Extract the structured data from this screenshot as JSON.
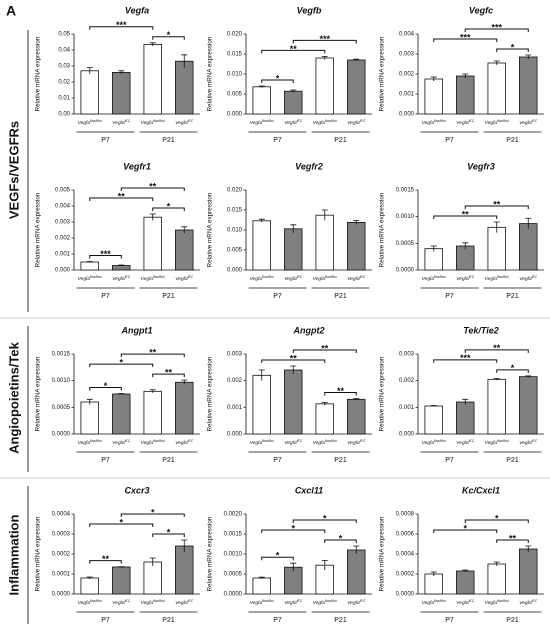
{
  "panel_label": "A",
  "row_labels": [
    "VEGFs/VEGFRs",
    "Angiopoietins/Tek",
    "Inflammation"
  ],
  "chart_data": [
    {
      "type": "bar",
      "title": "Vegfa",
      "y_label": "Relative mRNA expression",
      "categories": [
        {
          "text": "Vegfa",
          "sup": "flox/flox"
        },
        {
          "text": "Vegfa",
          "sup": "iEC"
        },
        {
          "text": "Vegfa",
          "sup": "flox/flox"
        },
        {
          "text": "Vegfa",
          "sup": "iEC"
        }
      ],
      "groups": [
        "P7",
        "P21"
      ],
      "colors": [
        "#ffffff",
        "#808080",
        "#ffffff",
        "#808080"
      ],
      "values": [
        0.027,
        0.026,
        0.0435,
        0.033
      ],
      "errors": [
        0.002,
        0.001,
        0.001,
        0.004
      ],
      "ylim": [
        0,
        0.05
      ],
      "yticks": [
        {
          "value": 0,
          "label": "0.00"
        },
        0.01,
        0.02,
        0.03,
        0.04,
        0.05
      ],
      "annotations": [
        {
          "between": [
            0,
            2
          ],
          "label": "***"
        },
        {
          "between": [
            2,
            3
          ],
          "label": "*"
        }
      ]
    },
    {
      "type": "bar",
      "title": "Vegfb",
      "y_label": "Relative mRNA expression",
      "categories": [
        {
          "text": "Vegfa",
          "sup": "flox/flox"
        },
        {
          "text": "Vegfa",
          "sup": "iEC"
        },
        {
          "text": "Vegfa",
          "sup": "flox/flox"
        },
        {
          "text": "Vegfa",
          "sup": "iEC"
        }
      ],
      "groups": [
        "P7",
        "P21"
      ],
      "colors": [
        "#ffffff",
        "#808080",
        "#ffffff",
        "#808080"
      ],
      "values": [
        0.0068,
        0.0057,
        0.014,
        0.0135
      ],
      "errors": [
        0.0002,
        0.0003,
        0.0004,
        0.0002
      ],
      "ylim": [
        0,
        0.02
      ],
      "yticks": [
        {
          "value": 0,
          "label": "0.000"
        },
        0.005,
        {
          "value": 0.01,
          "label": "0.010"
        },
        0.015,
        {
          "value": 0.02,
          "label": "0.020"
        }
      ],
      "annotations": [
        {
          "between": [
            0,
            1
          ],
          "label": "*"
        },
        {
          "between": [
            0,
            2
          ],
          "label": "**"
        },
        {
          "between": [
            1,
            3
          ],
          "label": "***"
        }
      ]
    },
    {
      "type": "bar",
      "title": "Vegfc",
      "y_label": "Relative mRNA expression",
      "categories": [
        {
          "text": "Vegfa",
          "sup": "flox/flox"
        },
        {
          "text": "Vegfa",
          "sup": "iEC"
        },
        {
          "text": "Vegfa",
          "sup": "flox/flox"
        },
        {
          "text": "Vegfa",
          "sup": "iEC"
        }
      ],
      "groups": [
        "P7",
        "P21"
      ],
      "colors": [
        "#ffffff",
        "#808080",
        "#ffffff",
        "#808080"
      ],
      "values": [
        0.00175,
        0.0019,
        0.00255,
        0.00285
      ],
      "errors": [
        0.0001,
        0.0001,
        0.0001,
        0.0001
      ],
      "ylim": [
        0,
        0.004
      ],
      "yticks": [
        {
          "value": 0,
          "label": "0.000"
        },
        0.001,
        0.002,
        0.003,
        0.004
      ],
      "annotations": [
        {
          "between": [
            0,
            2
          ],
          "label": "***"
        },
        {
          "between": [
            1,
            3
          ],
          "label": "***"
        },
        {
          "between": [
            2,
            3
          ],
          "label": "*"
        }
      ]
    },
    {
      "type": "bar",
      "title": "Vegfr1",
      "y_label": "Relative mRNA expression",
      "categories": [
        {
          "text": "Vegfa",
          "sup": "flox/flox"
        },
        {
          "text": "Vegfa",
          "sup": "iEC"
        },
        {
          "text": "Vegfa",
          "sup": "flox/flox"
        },
        {
          "text": "Vegfa",
          "sup": "iEC"
        }
      ],
      "groups": [
        "P7",
        "P21"
      ],
      "colors": [
        "#ffffff",
        "#808080",
        "#ffffff",
        "#808080"
      ],
      "values": [
        0.0005,
        0.00028,
        0.0033,
        0.0025
      ],
      "errors": [
        3e-05,
        3e-05,
        0.0002,
        0.0002
      ],
      "ylim": [
        0,
        0.005
      ],
      "yticks": [
        {
          "value": 0,
          "label": "0.000"
        },
        0.001,
        0.002,
        0.003,
        0.004,
        0.005
      ],
      "annotations": [
        {
          "between": [
            0,
            1
          ],
          "label": "***"
        },
        {
          "between": [
            0,
            2
          ],
          "label": "**"
        },
        {
          "between": [
            1,
            3
          ],
          "label": "**"
        },
        {
          "between": [
            2,
            3
          ],
          "label": "*"
        }
      ]
    },
    {
      "type": "bar",
      "title": "Vegfr2",
      "y_label": "Relative mRNA expression",
      "categories": [
        {
          "text": "Vegfa",
          "sup": "flox/flox"
        },
        {
          "text": "Vegfa",
          "sup": "iEC"
        },
        {
          "text": "Vegfa",
          "sup": "flox/flox"
        },
        {
          "text": "Vegfa",
          "sup": "iEC"
        }
      ],
      "groups": [
        "P7",
        "P21"
      ],
      "colors": [
        "#ffffff",
        "#808080",
        "#ffffff",
        "#808080"
      ],
      "values": [
        0.0123,
        0.0103,
        0.0137,
        0.0119
      ],
      "errors": [
        0.0004,
        0.001,
        0.0013,
        0.0005
      ],
      "ylim": [
        0,
        0.02
      ],
      "yticks": [
        {
          "value": 0,
          "label": "0.000"
        },
        0.005,
        {
          "value": 0.01,
          "label": "0.010"
        },
        0.015,
        {
          "value": 0.02,
          "label": "0.020"
        }
      ],
      "annotations": []
    },
    {
      "type": "bar",
      "title": "Vegfr3",
      "y_label": "Relative mRNA expression",
      "categories": [
        {
          "text": "Vegfa",
          "sup": "flox/flox"
        },
        {
          "text": "Vegfa",
          "sup": "iEC"
        },
        {
          "text": "Vegfa",
          "sup": "flox/flox"
        },
        {
          "text": "Vegfa",
          "sup": "iEC"
        }
      ],
      "groups": [
        "P7",
        "P21"
      ],
      "colors": [
        "#ffffff",
        "#808080",
        "#ffffff",
        "#808080"
      ],
      "values": [
        0.0004,
        0.00045,
        0.0008,
        0.00087
      ],
      "errors": [
        5e-05,
        6e-05,
        0.0001,
        0.0001
      ],
      "ylim": [
        0,
        0.0015
      ],
      "yticks": [
        {
          "value": 0,
          "label": "0.0000"
        },
        0.0005,
        {
          "value": 0.001,
          "label": "0.0010"
        },
        0.0015
      ],
      "annotations": [
        {
          "between": [
            0,
            2
          ],
          "label": "**"
        },
        {
          "between": [
            1,
            3
          ],
          "label": "**"
        }
      ]
    },
    {
      "type": "bar",
      "title": "Angpt1",
      "y_label": "Relative mRNA expression",
      "categories": [
        {
          "text": "Vegfa",
          "sup": "flox/flox"
        },
        {
          "text": "Vegfa",
          "sup": "iEC"
        },
        {
          "text": "Vegfa",
          "sup": "flox/flox"
        },
        {
          "text": "Vegfa",
          "sup": "iEC"
        }
      ],
      "groups": [
        "P7",
        "P21"
      ],
      "colors": [
        "#ffffff",
        "#808080",
        "#ffffff",
        "#808080"
      ],
      "values": [
        0.0006,
        0.00075,
        0.0008,
        0.00097
      ],
      "errors": [
        5e-05,
        1e-05,
        3e-05,
        4e-05
      ],
      "ylim": [
        0,
        0.0015
      ],
      "yticks": [
        {
          "value": 0,
          "label": "0.0000"
        },
        0.0005,
        {
          "value": 0.001,
          "label": "0.0010"
        },
        0.0015
      ],
      "annotations": [
        {
          "between": [
            0,
            1
          ],
          "label": "*"
        },
        {
          "between": [
            0,
            2
          ],
          "label": "*"
        },
        {
          "between": [
            1,
            3
          ],
          "label": "**"
        },
        {
          "between": [
            2,
            3
          ],
          "label": "**"
        }
      ]
    },
    {
      "type": "bar",
      "title": "Angpt2",
      "y_label": "Relative mRNA expression",
      "categories": [
        {
          "text": "Vegfa",
          "sup": "flox/flox"
        },
        {
          "text": "Vegfa",
          "sup": "iEC"
        },
        {
          "text": "Vegfa",
          "sup": "flox/flox"
        },
        {
          "text": "Vegfa",
          "sup": "iEC"
        }
      ],
      "groups": [
        "P7",
        "P21"
      ],
      "colors": [
        "#ffffff",
        "#808080",
        "#ffffff",
        "#808080"
      ],
      "values": [
        0.0022,
        0.0024,
        0.00113,
        0.0013
      ],
      "errors": [
        0.0002,
        0.00015,
        5e-05,
        3e-05
      ],
      "ylim": [
        0,
        0.003
      ],
      "yticks": [
        {
          "value": 0,
          "label": "0.000"
        },
        0.001,
        0.002,
        0.003
      ],
      "annotations": [
        {
          "between": [
            0,
            2
          ],
          "label": "**"
        },
        {
          "between": [
            1,
            3
          ],
          "label": "**"
        },
        {
          "between": [
            2,
            3
          ],
          "label": "**"
        }
      ]
    },
    {
      "type": "bar",
      "title": "Tek/Tie2",
      "y_label": "Relative mRNA expression",
      "categories": [
        {
          "text": "Vegfa",
          "sup": "flox/flox"
        },
        {
          "text": "Vegfa",
          "sup": "iEC"
        },
        {
          "text": "Vegfa",
          "sup": "flox/flox"
        },
        {
          "text": "Vegfa",
          "sup": "iEC"
        }
      ],
      "groups": [
        "P7",
        "P21"
      ],
      "colors": [
        "#ffffff",
        "#808080",
        "#ffffff",
        "#808080"
      ],
      "values": [
        0.00105,
        0.0012,
        0.00205,
        0.00215
      ],
      "errors": [
        2e-05,
        0.0001,
        3e-05,
        3e-05
      ],
      "ylim": [
        0,
        0.003
      ],
      "yticks": [
        {
          "value": 0,
          "label": "0.000"
        },
        0.001,
        0.002,
        0.003
      ],
      "annotations": [
        {
          "between": [
            0,
            2
          ],
          "label": "***"
        },
        {
          "between": [
            1,
            3
          ],
          "label": "**"
        },
        {
          "between": [
            2,
            3
          ],
          "label": "*"
        }
      ]
    },
    {
      "type": "bar",
      "title": "Cxcr3",
      "y_label": "Relative mRNA expression",
      "categories": [
        {
          "text": "Vegfa",
          "sup": "flox/flox"
        },
        {
          "text": "Vegfa",
          "sup": "iEC"
        },
        {
          "text": "Vegfa",
          "sup": "flox/flox"
        },
        {
          "text": "Vegfa",
          "sup": "iEC"
        }
      ],
      "groups": [
        "P7",
        "P21"
      ],
      "colors": [
        "#ffffff",
        "#808080",
        "#ffffff",
        "#808080"
      ],
      "values": [
        8e-05,
        0.000135,
        0.00016,
        0.00024
      ],
      "errors": [
        5e-06,
        2e-06,
        2e-05,
        3e-05
      ],
      "ylim": [
        0,
        0.0004
      ],
      "yticks": [
        {
          "value": 0,
          "label": "0.0000"
        },
        0.0001,
        0.0002,
        0.0003,
        0.0004
      ],
      "annotations": [
        {
          "between": [
            0,
            1
          ],
          "label": "**"
        },
        {
          "between": [
            0,
            2
          ],
          "label": "*"
        },
        {
          "between": [
            1,
            3
          ],
          "label": "*"
        },
        {
          "between": [
            2,
            3
          ],
          "label": "*"
        }
      ]
    },
    {
      "type": "bar",
      "title": "Cxcl11",
      "y_label": "Relative mRNA expression",
      "categories": [
        {
          "text": "Vegfa",
          "sup": "flox/flox"
        },
        {
          "text": "Vegfa",
          "sup": "iEC"
        },
        {
          "text": "Vegfa",
          "sup": "flox/flox"
        },
        {
          "text": "Vegfa",
          "sup": "iEC"
        }
      ],
      "groups": [
        "P7",
        "P21"
      ],
      "colors": [
        "#ffffff",
        "#808080",
        "#ffffff",
        "#808080"
      ],
      "values": [
        0.0004,
        0.00067,
        0.00072,
        0.0011
      ],
      "errors": [
        2e-05,
        0.0001,
        0.00012,
        0.0001
      ],
      "ylim": [
        0,
        0.002
      ],
      "yticks": [
        {
          "value": 0,
          "label": "0.0000"
        },
        0.0005,
        {
          "value": 0.001,
          "label": "0.0010"
        },
        0.0015,
        {
          "value": 0.002,
          "label": "0.0020"
        }
      ],
      "annotations": [
        {
          "between": [
            0,
            1
          ],
          "label": "*"
        },
        {
          "between": [
            0,
            2
          ],
          "label": "*"
        },
        {
          "between": [
            1,
            3
          ],
          "label": "*"
        },
        {
          "between": [
            2,
            3
          ],
          "label": "*"
        }
      ]
    },
    {
      "type": "bar",
      "title": "Kc/Cxcl1",
      "y_label": "Relative mRNA expression",
      "categories": [
        {
          "text": "Vegfa",
          "sup": "flox/flox"
        },
        {
          "text": "Vegfa",
          "sup": "iEC"
        },
        {
          "text": "Vegfa",
          "sup": "flox/flox"
        },
        {
          "text": "Vegfa",
          "sup": "iEC"
        }
      ],
      "groups": [
        "P7",
        "P21"
      ],
      "colors": [
        "#ffffff",
        "#808080",
        "#ffffff",
        "#808080"
      ],
      "values": [
        0.0002,
        0.00023,
        0.0003,
        0.00045
      ],
      "errors": [
        2e-05,
        1e-05,
        2e-05,
        3e-05
      ],
      "ylim": [
        0,
        0.0008
      ],
      "yticks": [
        {
          "value": 0,
          "label": "0.0000"
        },
        0.0002,
        0.0004,
        0.0006,
        0.0008
      ],
      "annotations": [
        {
          "between": [
            0,
            2
          ],
          "label": "*"
        },
        {
          "between": [
            1,
            3
          ],
          "label": "*"
        },
        {
          "between": [
            2,
            3
          ],
          "label": "**"
        }
      ]
    }
  ]
}
